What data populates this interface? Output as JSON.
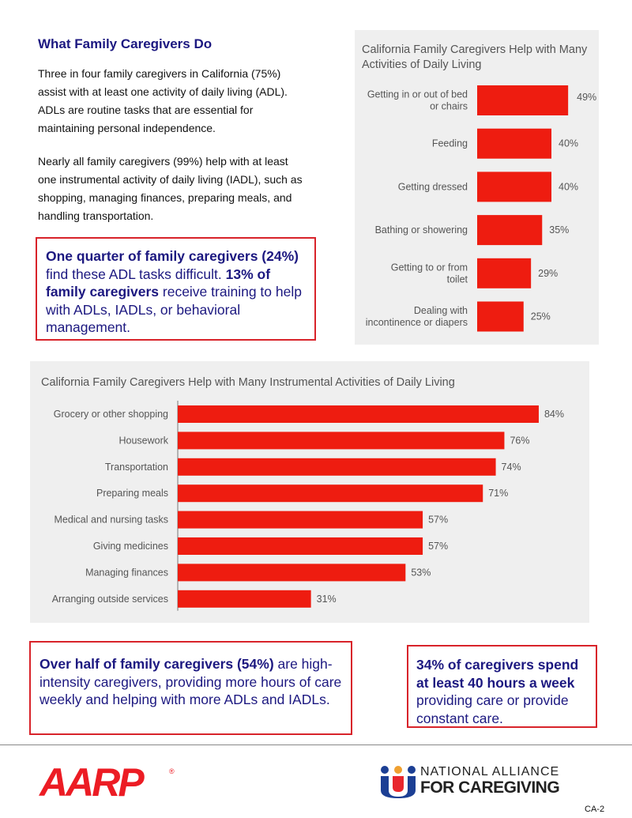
{
  "section": {
    "heading": "What Family Caregivers Do",
    "para1": [
      "Three in four family caregivers in California (75%)",
      "assist with at least one activity of daily living (ADL).",
      "ADLs are routine tasks that are essential for",
      "maintaining personal independence."
    ],
    "para2": [
      "Nearly all family caregivers (99%) help with at least",
      "one instrumental activity of daily living (IADL), such as",
      "shopping, managing finances, preparing meals, and",
      "handling transportation."
    ]
  },
  "callout1": {
    "b1": "One quarter of family caregivers (24%)",
    "t1": " find these ADL tasks difficult. ",
    "b2": "13% of family caregivers",
    "t2": " receive training to help with ADLs, IADLs, or behavioral management."
  },
  "callout2": {
    "b1": "Over half of family caregivers (54%)",
    "t1": " are high-intensity caregivers, providing more hours of care weekly and helping with more ADLs and IADLs."
  },
  "callout3": {
    "b1": "34% of caregivers spend at least 40 hours a week",
    "t1": " providing care or provide constant care."
  },
  "chart_data": [
    {
      "type": "bar",
      "orientation": "horizontal",
      "title": "California Family Caregivers Help with Many Activities of Daily Living",
      "categories": [
        "Getting in or out of bed or chairs",
        "Feeding",
        "Getting dressed",
        "Bathing or showering",
        "Getting to or from toilet",
        "Dealing with incontinence or diapers"
      ],
      "values": [
        49,
        40,
        40,
        35,
        29,
        25
      ],
      "value_labels": [
        "49%",
        "40%",
        "40%",
        "35%",
        "29%",
        "25%"
      ],
      "grid": false,
      "color": "#ee1c10"
    },
    {
      "type": "bar",
      "orientation": "horizontal",
      "title": "California Family Caregivers Help with Many Instrumental Activities of Daily Living",
      "categories": [
        "Grocery or other shopping",
        "Housework",
        "Transportation",
        "Preparing meals",
        "Medical and nursing tasks",
        "Giving medicines",
        "Managing finances",
        "Arranging outside services"
      ],
      "values": [
        84,
        76,
        74,
        71,
        57,
        57,
        53,
        31
      ],
      "value_labels": [
        "84%",
        "76%",
        "74%",
        "71%",
        "57%",
        "57%",
        "53%",
        "31%"
      ],
      "grid": false,
      "color": "#ee1c10"
    }
  ],
  "footer": {
    "aarp": "AARP",
    "registered": "®",
    "nac_line1": "NATIONAL ALLIANCE",
    "nac_line2": "FOR CAREGIVING",
    "page": "CA-2"
  },
  "colors": {
    "navy": "#1c1880",
    "red": "#d8232a",
    "bar": "#ee1c10",
    "panel": "#efefef"
  }
}
